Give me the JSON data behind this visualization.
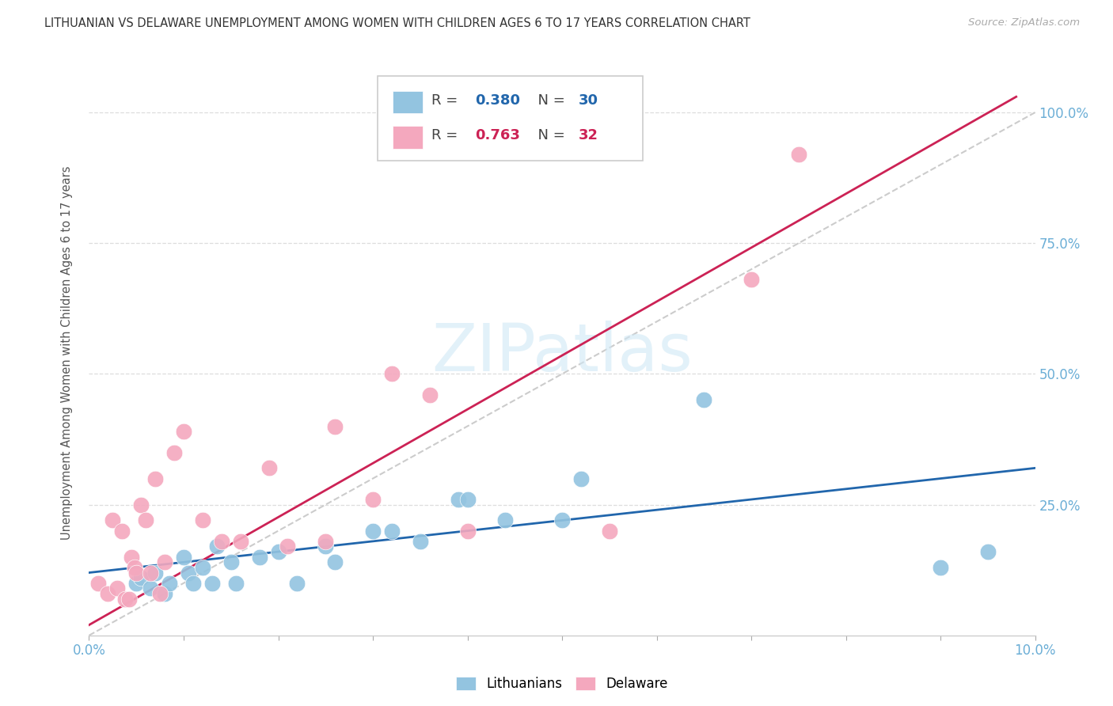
{
  "title": "LITHUANIAN VS DELAWARE UNEMPLOYMENT AMONG WOMEN WITH CHILDREN AGES 6 TO 17 YEARS CORRELATION CHART",
  "source": "Source: ZipAtlas.com",
  "ylabel": "Unemployment Among Women with Children Ages 6 to 17 years",
  "xlim": [
    0.0,
    10.0
  ],
  "ylim": [
    0.0,
    108.0
  ],
  "yticks_right": [
    0.0,
    25.0,
    50.0,
    75.0,
    100.0
  ],
  "ytick_labels_right": [
    "",
    "25.0%",
    "50.0%",
    "75.0%",
    "100.0%"
  ],
  "blue_color": "#93c4e0",
  "pink_color": "#f4a8be",
  "blue_line_color": "#2166ac",
  "pink_line_color": "#cc2255",
  "ref_line_color": "#cccccc",
  "axis_color": "#6baed6",
  "grid_color": "#dddddd",
  "watermark": "ZIPatlas",
  "blue_r": "0.380",
  "blue_n": "30",
  "pink_r": "0.763",
  "pink_n": "32",
  "blue_scatter_x": [
    0.5,
    0.55,
    0.65,
    0.7,
    0.8,
    0.85,
    1.0,
    1.05,
    1.1,
    1.2,
    1.3,
    1.35,
    1.5,
    1.55,
    1.8,
    2.0,
    2.2,
    2.5,
    2.6,
    3.0,
    3.2,
    3.5,
    3.9,
    4.0,
    4.4,
    5.0,
    5.2,
    6.5,
    9.0,
    9.5
  ],
  "blue_scatter_y": [
    10,
    11,
    9,
    12,
    8,
    10,
    15,
    12,
    10,
    13,
    10,
    17,
    14,
    10,
    15,
    16,
    10,
    17,
    14,
    20,
    20,
    18,
    26,
    26,
    22,
    22,
    30,
    45,
    13,
    16
  ],
  "pink_scatter_x": [
    0.1,
    0.2,
    0.25,
    0.3,
    0.35,
    0.38,
    0.42,
    0.45,
    0.48,
    0.5,
    0.55,
    0.6,
    0.65,
    0.7,
    0.75,
    0.8,
    0.9,
    1.0,
    1.2,
    1.4,
    1.6,
    1.9,
    2.1,
    2.5,
    2.6,
    3.0,
    3.2,
    3.6,
    4.0,
    5.5,
    7.0,
    7.5
  ],
  "pink_scatter_y": [
    10,
    8,
    22,
    9,
    20,
    7,
    7,
    15,
    13,
    12,
    25,
    22,
    12,
    30,
    8,
    14,
    35,
    39,
    22,
    18,
    18,
    32,
    17,
    18,
    40,
    26,
    50,
    46,
    20,
    20,
    68,
    92
  ],
  "blue_line_x": [
    0.0,
    10.0
  ],
  "blue_line_y": [
    12.0,
    32.0
  ],
  "pink_line_x": [
    0.0,
    9.8
  ],
  "pink_line_y": [
    2.0,
    103.0
  ],
  "ref_line_x": [
    0.0,
    10.0
  ],
  "ref_line_y": [
    0.0,
    100.0
  ]
}
